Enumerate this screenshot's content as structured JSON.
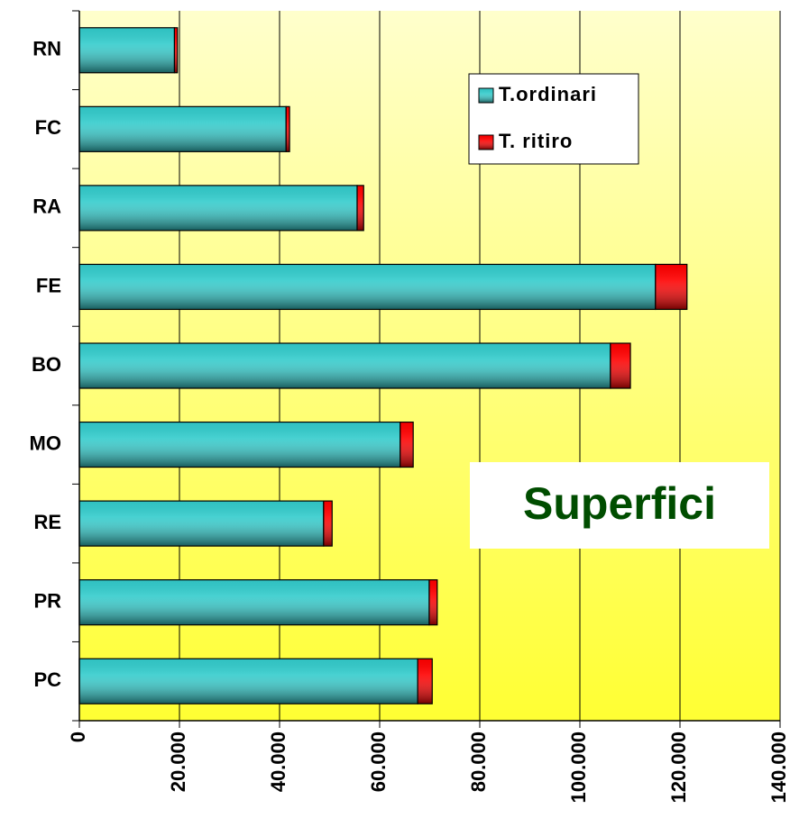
{
  "chart_data": {
    "type": "bar",
    "orientation": "horizontal",
    "stacked": true,
    "categories": [
      "RN",
      "FC",
      "RA",
      "FE",
      "BO",
      "MO",
      "RE",
      "PR",
      "PC"
    ],
    "series": [
      {
        "name": "T.ordinari",
        "color": "#33cccc",
        "values": [
          19000,
          41300,
          55500,
          115100,
          106100,
          64100,
          48800,
          69900,
          67600
        ]
      },
      {
        "name": "T. ritiro",
        "color": "#ff0000",
        "values": [
          600,
          700,
          1300,
          6300,
          4000,
          2600,
          1700,
          1600,
          2900
        ]
      }
    ],
    "xlim": [
      0,
      140000
    ],
    "xticks": [
      0,
      {
        "value": 20000,
        "label": "20.000"
      },
      {
        "value": 40000,
        "label": "40.000"
      },
      {
        "value": 60000,
        "label": "60.000"
      },
      {
        "value": 80000,
        "label": "80.000"
      },
      {
        "value": 100000,
        "label": "100.000"
      },
      {
        "value": 120000,
        "label": "120.000"
      },
      {
        "value": 140000,
        "label": "140.000"
      }
    ],
    "grid": true,
    "legend": "top-right",
    "annotation": "Superfici"
  }
}
